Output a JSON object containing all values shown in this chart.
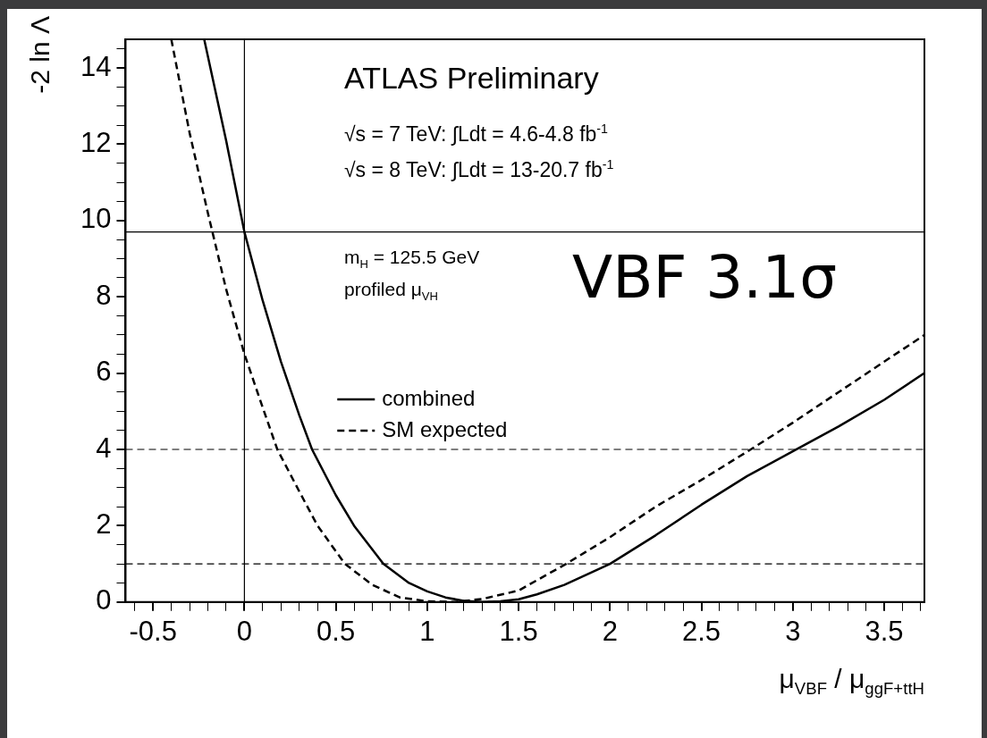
{
  "chart_data": {
    "type": "line",
    "xlabel": "μ$_{VBF}$ / μ$_{ggF+ttH}$",
    "ylabel": "-2 ln Λ",
    "annotations": [
      "ATLAS Preliminary",
      "√s = 7 TeV:  ∫Ldt = 4.6-4.8 fb$^{-1}$",
      "√s = 8 TeV:  ∫Ldt = 13-20.7 fb$^{-1}$",
      "m$_{H}$ = 125.5 GeV",
      "profiled μ$_{VH}$",
      "VBF 3.1σ"
    ],
    "series": [
      {
        "name": "combined",
        "color": "#000000",
        "line_style": "solid",
        "x": [
          -0.22,
          -0.1,
          0,
          0.1,
          0.2,
          0.3,
          0.37,
          0.5,
          0.6,
          0.76,
          0.9,
          1.0,
          1.1,
          1.2,
          1.3,
          1.4,
          1.5,
          1.6,
          1.75,
          2.0,
          2.25,
          2.5,
          2.75,
          3.0,
          3.25,
          3.5,
          3.72
        ],
        "values": [
          14.75,
          12.1,
          9.7,
          7.9,
          6.3,
          4.9,
          4.0,
          2.8,
          2.0,
          1.0,
          0.5,
          0.28,
          0.12,
          0.03,
          0,
          0.02,
          0.07,
          0.2,
          0.45,
          1.0,
          1.75,
          2.55,
          3.3,
          3.95,
          4.6,
          5.3,
          6.0
        ]
      },
      {
        "name": "SM expected",
        "color": "#000000",
        "line_style": "dashed",
        "x": [
          -0.4,
          -0.3,
          -0.2,
          -0.1,
          0,
          0.1,
          0.18,
          0.3,
          0.4,
          0.55,
          0.7,
          0.85,
          1.0,
          1.15,
          1.3,
          1.5,
          1.76,
          2.0,
          2.25,
          2.5,
          2.77,
          3.0,
          3.25,
          3.5,
          3.72
        ],
        "values": [
          14.75,
          12.3,
          10.2,
          8.2,
          6.5,
          5.1,
          4.0,
          2.9,
          2.0,
          1.0,
          0.45,
          0.12,
          0.02,
          0,
          0.08,
          0.3,
          1.0,
          1.7,
          2.5,
          3.2,
          4.0,
          4.7,
          5.5,
          6.3,
          7.0
        ]
      }
    ],
    "ref_lines": [
      {
        "axis": "y",
        "value": 9.7,
        "line_style": "solid",
        "color": "#000000"
      },
      {
        "axis": "y",
        "value": 4,
        "line_style": "dashed",
        "color": "#000000"
      },
      {
        "axis": "y",
        "value": 1,
        "line_style": "dashed",
        "color": "#000000"
      },
      {
        "axis": "x",
        "value": 0,
        "line_style": "solid",
        "color": "#000000"
      }
    ],
    "xlim": [
      -0.65,
      3.72
    ],
    "ylim": [
      0,
      14.75
    ],
    "xticks": [
      {
        "value": -0.6,
        "label": null
      },
      -0.5,
      {
        "value": -0.4,
        "label": null
      },
      {
        "value": -0.3,
        "label": null
      },
      {
        "value": -0.2,
        "label": null
      },
      {
        "value": -0.1,
        "label": null
      },
      0,
      {
        "value": 0.1,
        "label": null
      },
      {
        "value": 0.2,
        "label": null
      },
      {
        "value": 0.3,
        "label": null
      },
      {
        "value": 0.4,
        "label": null
      },
      0.5,
      {
        "value": 0.6,
        "label": null
      },
      {
        "value": 0.7,
        "label": null
      },
      {
        "value": 0.8,
        "label": null
      },
      {
        "value": 0.9,
        "label": null
      },
      1,
      {
        "value": 1.1,
        "label": null
      },
      {
        "value": 1.2,
        "label": null
      },
      {
        "value": 1.3,
        "label": null
      },
      {
        "value": 1.4,
        "label": null
      },
      1.5,
      {
        "value": 1.6,
        "label": null
      },
      {
        "value": 1.7,
        "label": null
      },
      {
        "value": 1.8,
        "label": null
      },
      {
        "value": 1.9,
        "label": null
      },
      2,
      {
        "value": 2.1,
        "label": null
      },
      {
        "value": 2.2,
        "label": null
      },
      {
        "value": 2.3,
        "label": null
      },
      {
        "value": 2.4,
        "label": null
      },
      2.5,
      {
        "value": 2.6,
        "label": null
      },
      {
        "value": 2.7,
        "label": null
      },
      {
        "value": 2.8,
        "label": null
      },
      {
        "value": 2.9,
        "label": null
      },
      3,
      {
        "value": 3.1,
        "label": null
      },
      {
        "value": 3.2,
        "label": null
      },
      {
        "value": 3.3,
        "label": null
      },
      {
        "value": 3.4,
        "label": null
      },
      3.5,
      {
        "value": 3.6,
        "label": null
      },
      {
        "value": 3.7,
        "label": null
      }
    ],
    "yticks": [
      0,
      {
        "value": 0.5,
        "label": null
      },
      {
        "value": 1,
        "label": null
      },
      {
        "value": 1.5,
        "label": null
      },
      2,
      {
        "value": 2.5,
        "label": null
      },
      {
        "value": 3,
        "label": null
      },
      {
        "value": 3.5,
        "label": null
      },
      4,
      {
        "value": 4.5,
        "label": null
      },
      {
        "value": 5,
        "label": null
      },
      {
        "value": 5.5,
        "label": null
      },
      6,
      {
        "value": 6.5,
        "label": null
      },
      {
        "value": 7,
        "label": null
      },
      {
        "value": 7.5,
        "label": null
      },
      8,
      {
        "value": 8.5,
        "label": null
      },
      {
        "value": 9,
        "label": null
      },
      {
        "value": 9.5,
        "label": null
      },
      10,
      {
        "value": 10.5,
        "label": null
      },
      {
        "value": 11,
        "label": null
      },
      {
        "value": 11.5,
        "label": null
      },
      12,
      {
        "value": 12.5,
        "label": null
      },
      {
        "value": 13,
        "label": null
      },
      {
        "value": 13.5,
        "label": null
      },
      14,
      {
        "value": 14.5,
        "label": null
      }
    ],
    "grid": false,
    "legend": "left",
    "marker": "none"
  }
}
